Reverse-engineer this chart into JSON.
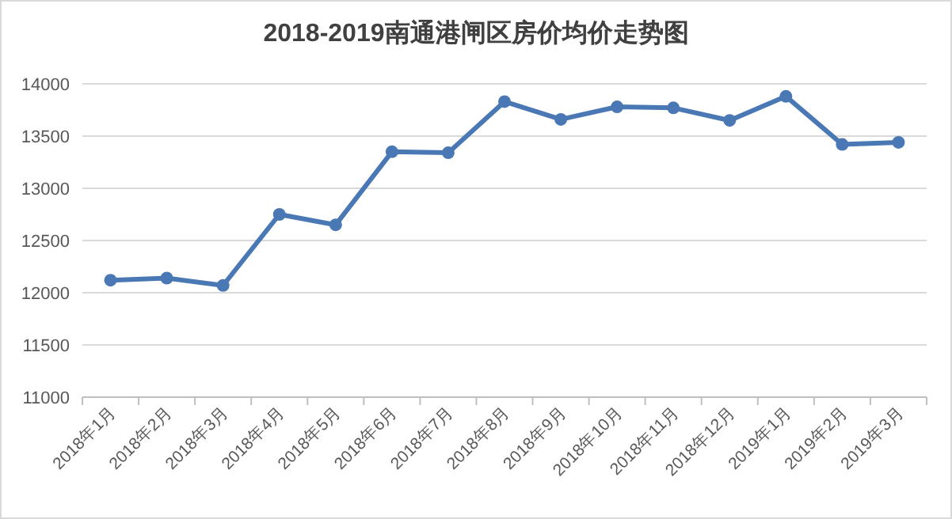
{
  "chart_data": {
    "type": "line",
    "title": "2018-2019南通港闸区房价均价走势图",
    "categories": [
      "2018年1月",
      "2018年2月",
      "2018年3月",
      "2018年4月",
      "2018年5月",
      "2018年6月",
      "2018年7月",
      "2018年8月",
      "2018年9月",
      "2018年10月",
      "2018年11月",
      "2018年12月",
      "2019年1月",
      "2019年2月",
      "2019年3月"
    ],
    "series": [
      {
        "color": "#4a78b5",
        "values": [
          12120,
          12140,
          12070,
          12750,
          12650,
          13350,
          13340,
          13830,
          13660,
          13780,
          13770,
          13650,
          13880,
          13420,
          13440
        ]
      }
    ],
    "ylim": [
      11000,
      14000
    ],
    "yticks": [
      11000,
      11500,
      12000,
      12500,
      13000,
      13500,
      14000
    ],
    "grid": "y",
    "marker": "circle"
  }
}
